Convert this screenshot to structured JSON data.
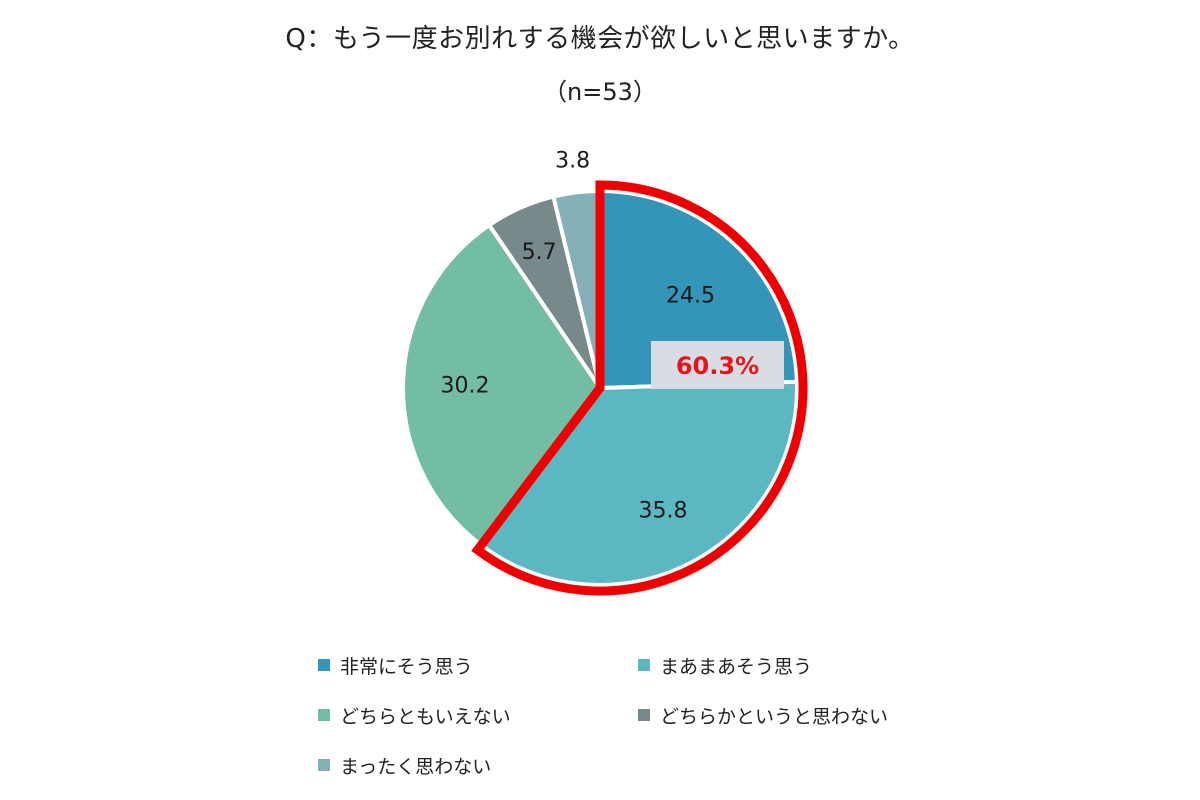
{
  "header": {
    "title": "Q：もう一度お別れする機会が欲しいと思いますか。",
    "subtitle": "（n=53）"
  },
  "chart_data": {
    "type": "pie",
    "title": "Q：もう一度お別れする機会が欲しいと思いますか。",
    "subtitle": "（n=53）",
    "unit": "%",
    "start": "12 o'clock, clockwise",
    "slices": [
      {
        "label": "非常にそう思う",
        "value": 24.5,
        "value_label": "24.5",
        "color": "#3495b8"
      },
      {
        "label": "まあまあそう思う",
        "value": 35.8,
        "value_label": "35.8",
        "color": "#5bb8c2"
      },
      {
        "label": "どちらともいえない",
        "value": 30.2,
        "value_label": "30.2",
        "color": "#74bda5"
      },
      {
        "label": "どちらかというと思わない",
        "value": 5.7,
        "value_label": "5.7",
        "color": "#78898b"
      },
      {
        "label": "まったく思わない",
        "value": 3.8,
        "value_label": "3.8",
        "color": "#86b0b8"
      }
    ],
    "highlight": {
      "slices": [
        "非常にそう思う",
        "まあまあそう思う"
      ],
      "label": "60.3%",
      "outline_color": "#ee0000",
      "text_color": "#e8141c",
      "box_color": "#d8dde4"
    },
    "legend_position": "bottom"
  }
}
